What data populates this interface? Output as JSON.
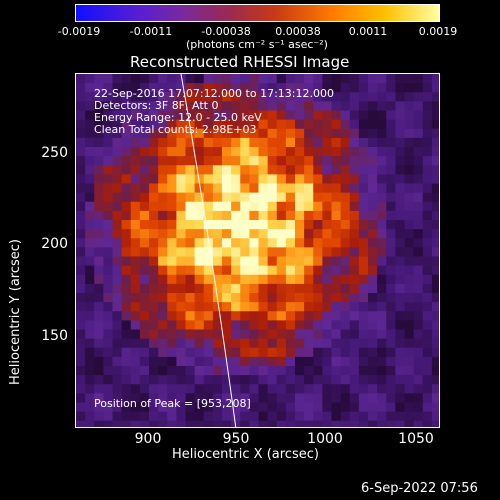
{
  "colorbar": {
    "ticks": [
      "-0.0019",
      "-0.0011",
      "-0.00038",
      "0.00038",
      "0.0011",
      "0.0019"
    ],
    "units_label": "(photons cm⁻² s⁻¹ asec⁻²)"
  },
  "title": "Reconstructed RHESSI Image",
  "info_lines": [
    "22-Sep-2016 17:07:12.000 to 17:13:12.000",
    "Detectors: 3F 8F, Att 0",
    "Energy Range: 12.0 - 25.0 keV",
    "Clean     Total counts: 2.98E+03"
  ],
  "peak_label": "Position of Peak = [953,208]",
  "x_axis": {
    "label": "Heliocentric X (arcsec)",
    "ticks": [
      "900",
      "950",
      "1000",
      "1050"
    ]
  },
  "y_axis": {
    "label": "Heliocentric Y (arcsec)",
    "ticks": [
      "250",
      "200",
      "150"
    ]
  },
  "footer_timestamp": "6-Sep-2022 07:56",
  "colors": {
    "limb": "#ffffff",
    "background": "#000000"
  }
}
